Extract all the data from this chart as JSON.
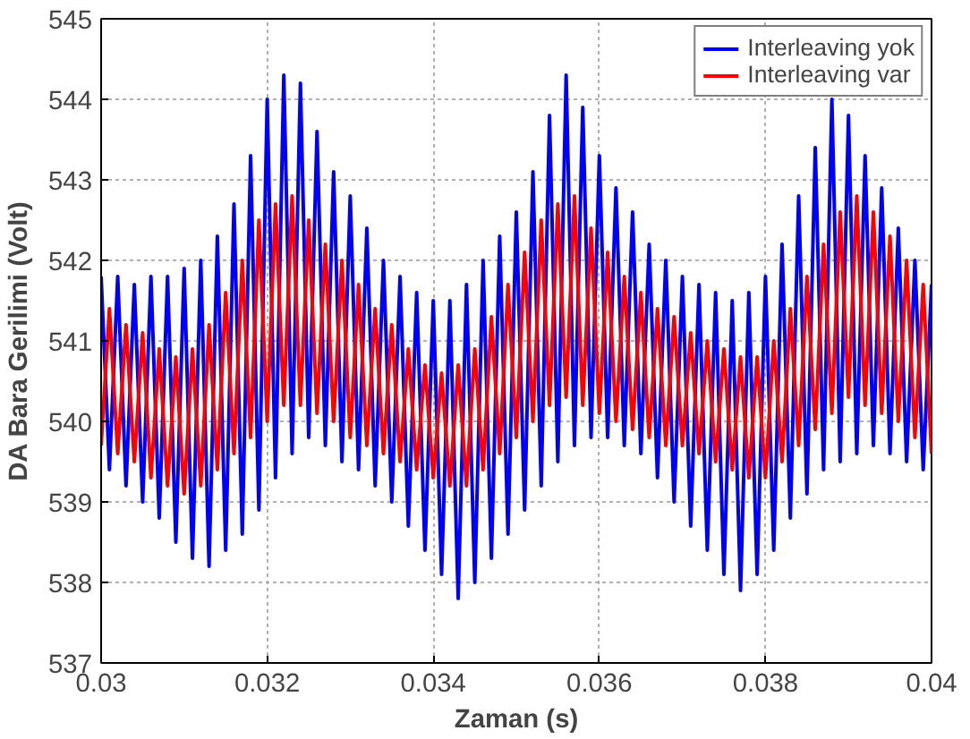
{
  "chart_data": {
    "type": "line",
    "xlabel": "Zaman (s)",
    "ylabel": "DA Bara Gerilimi (Volt)",
    "x": [
      0.03,
      0.0301,
      0.0302,
      0.0303,
      0.0304,
      0.0305,
      0.0306,
      0.0307,
      0.0308,
      0.0309,
      0.031,
      0.0311,
      0.0312,
      0.0313,
      0.0314,
      0.0315,
      0.0316,
      0.0317,
      0.0318,
      0.0319,
      0.032,
      0.0321,
      0.0322,
      0.0323,
      0.0324,
      0.0325,
      0.0326,
      0.0327,
      0.0328,
      0.0329,
      0.033,
      0.0331,
      0.0332,
      0.0333,
      0.0334,
      0.0335,
      0.0336,
      0.0337,
      0.0338,
      0.0339,
      0.034,
      0.0341,
      0.0342,
      0.0343,
      0.0344,
      0.0345,
      0.0346,
      0.0347,
      0.0348,
      0.0349,
      0.035,
      0.0351,
      0.0352,
      0.0353,
      0.0354,
      0.0355,
      0.0356,
      0.0357,
      0.0358,
      0.0359,
      0.036,
      0.0361,
      0.0362,
      0.0363,
      0.0364,
      0.0365,
      0.0366,
      0.0367,
      0.0368,
      0.0369,
      0.037,
      0.0371,
      0.0372,
      0.0373,
      0.0374,
      0.0375,
      0.0376,
      0.0377,
      0.0378,
      0.0379,
      0.038,
      0.0381,
      0.0382,
      0.0383,
      0.0384,
      0.0385,
      0.0386,
      0.0387,
      0.0388,
      0.0389,
      0.039,
      0.0391,
      0.0392,
      0.0393,
      0.0394,
      0.0395,
      0.0396,
      0.0397,
      0.0398,
      0.0399,
      0.04
    ],
    "series": [
      {
        "name": "Interleaving yok",
        "color": "#0000ff",
        "values": [
          541.8,
          539.4,
          541.8,
          539.2,
          541.7,
          539.0,
          541.8,
          538.8,
          541.8,
          538.5,
          541.9,
          538.3,
          542.0,
          538.2,
          542.3,
          538.4,
          542.7,
          538.6,
          543.3,
          538.9,
          544.0,
          539.3,
          544.3,
          539.6,
          544.2,
          539.8,
          543.6,
          539.7,
          543.1,
          539.5,
          542.8,
          539.4,
          542.4,
          539.2,
          542.0,
          539.0,
          541.8,
          538.7,
          541.6,
          538.4,
          541.5,
          538.1,
          541.5,
          537.8,
          541.7,
          538.0,
          542.0,
          538.3,
          542.3,
          538.6,
          542.6,
          538.9,
          543.1,
          539.2,
          543.8,
          539.5,
          544.3,
          539.7,
          543.9,
          539.8,
          543.3,
          539.8,
          542.9,
          539.7,
          542.6,
          539.6,
          542.2,
          539.3,
          542.0,
          539.0,
          541.8,
          538.7,
          541.7,
          538.4,
          541.6,
          538.1,
          541.5,
          537.9,
          541.6,
          538.1,
          541.8,
          538.4,
          542.2,
          538.8,
          542.8,
          539.1,
          543.4,
          539.4,
          544.0,
          539.5,
          543.8,
          539.6,
          543.3,
          539.7,
          542.9,
          539.6,
          542.4,
          539.5,
          542.0,
          539.4,
          541.7
        ]
      },
      {
        "name": "Interleaving var",
        "color": "#ff0000",
        "values": [
          539.7,
          541.4,
          539.6,
          541.2,
          539.5,
          541.1,
          539.3,
          540.9,
          539.2,
          540.8,
          539.1,
          540.9,
          539.2,
          541.2,
          539.4,
          541.6,
          539.6,
          542.0,
          539.8,
          542.5,
          540.0,
          542.7,
          540.2,
          542.8,
          540.2,
          542.5,
          540.1,
          542.2,
          540.0,
          542.0,
          539.8,
          541.7,
          539.7,
          541.4,
          539.6,
          541.2,
          539.5,
          540.9,
          539.4,
          540.7,
          539.3,
          540.6,
          539.2,
          540.7,
          539.2,
          540.9,
          539.4,
          541.3,
          539.6,
          541.7,
          539.8,
          542.1,
          540.0,
          542.5,
          540.2,
          542.7,
          540.3,
          542.8,
          540.2,
          542.4,
          540.1,
          542.1,
          540.0,
          541.8,
          539.9,
          541.6,
          539.8,
          541.4,
          539.7,
          541.3,
          539.7,
          541.1,
          539.6,
          541.0,
          539.5,
          540.9,
          539.4,
          540.8,
          539.3,
          540.8,
          539.3,
          541.0,
          539.5,
          541.4,
          539.7,
          541.8,
          539.9,
          542.2,
          540.1,
          542.6,
          540.3,
          542.8,
          540.2,
          542.6,
          540.1,
          542.3,
          540.0,
          542.0,
          539.8,
          541.7,
          539.6
        ]
      }
    ],
    "xlim": [
      0.03,
      0.04
    ],
    "ylim": [
      537,
      545
    ],
    "xticks": [
      0.03,
      0.032,
      0.034,
      0.036,
      0.038,
      0.04
    ],
    "yticks": [
      537,
      538,
      539,
      540,
      541,
      542,
      543,
      544,
      545
    ],
    "grid": true,
    "legend": "top right",
    "line_style": "solid"
  }
}
